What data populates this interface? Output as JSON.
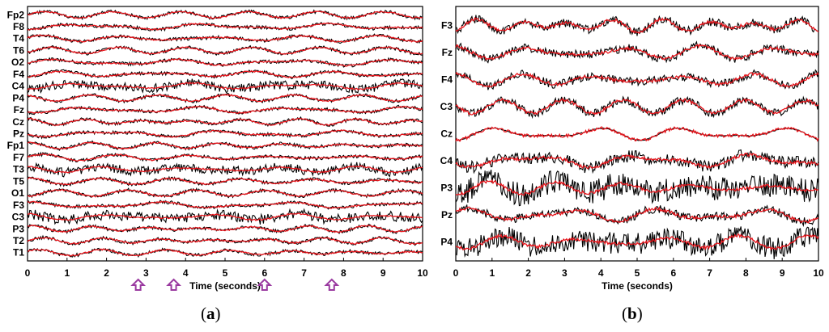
{
  "colors": {
    "raw": "#000000",
    "filtered": "#e8141b",
    "marker": "#9a3aa0",
    "frame": "#000000"
  },
  "chart_data": [
    {
      "type": "line",
      "panel_label": "(a)",
      "xlabel": "Time (seconds)",
      "xlim": [
        0,
        10
      ],
      "xticks": [
        "0",
        "1",
        "2",
        "3",
        "4",
        "5",
        "6",
        "7",
        "8",
        "9",
        "10"
      ],
      "channels": [
        "Fp2",
        "F8",
        "T4",
        "T6",
        "O2",
        "F4",
        "C4",
        "P4",
        "Fz",
        "Cz",
        "Pz",
        "Fp1",
        "F7",
        "T3",
        "T5",
        "O1",
        "F3",
        "C3",
        "P3",
        "T2",
        "T1"
      ],
      "series": [
        {
          "values": []
        },
        {
          "values": []
        }
      ],
      "markers": {
        "icon": "up-arrow-icon",
        "x": [
          2.8,
          3.7,
          6.0,
          7.7
        ]
      }
    },
    {
      "type": "line",
      "panel_label": "(b)",
      "xlabel": "Time (seconds)",
      "xlim": [
        0,
        10
      ],
      "xticks": [
        "0",
        "1",
        "2",
        "3",
        "4",
        "5",
        "6",
        "7",
        "8",
        "9",
        "10"
      ],
      "channels": [
        "F3",
        "Fz",
        "F4",
        "C3",
        "Cz",
        "C4",
        "P3",
        "Pz",
        "P4"
      ],
      "series": [
        {
          "values": []
        },
        {
          "values": []
        }
      ]
    }
  ]
}
